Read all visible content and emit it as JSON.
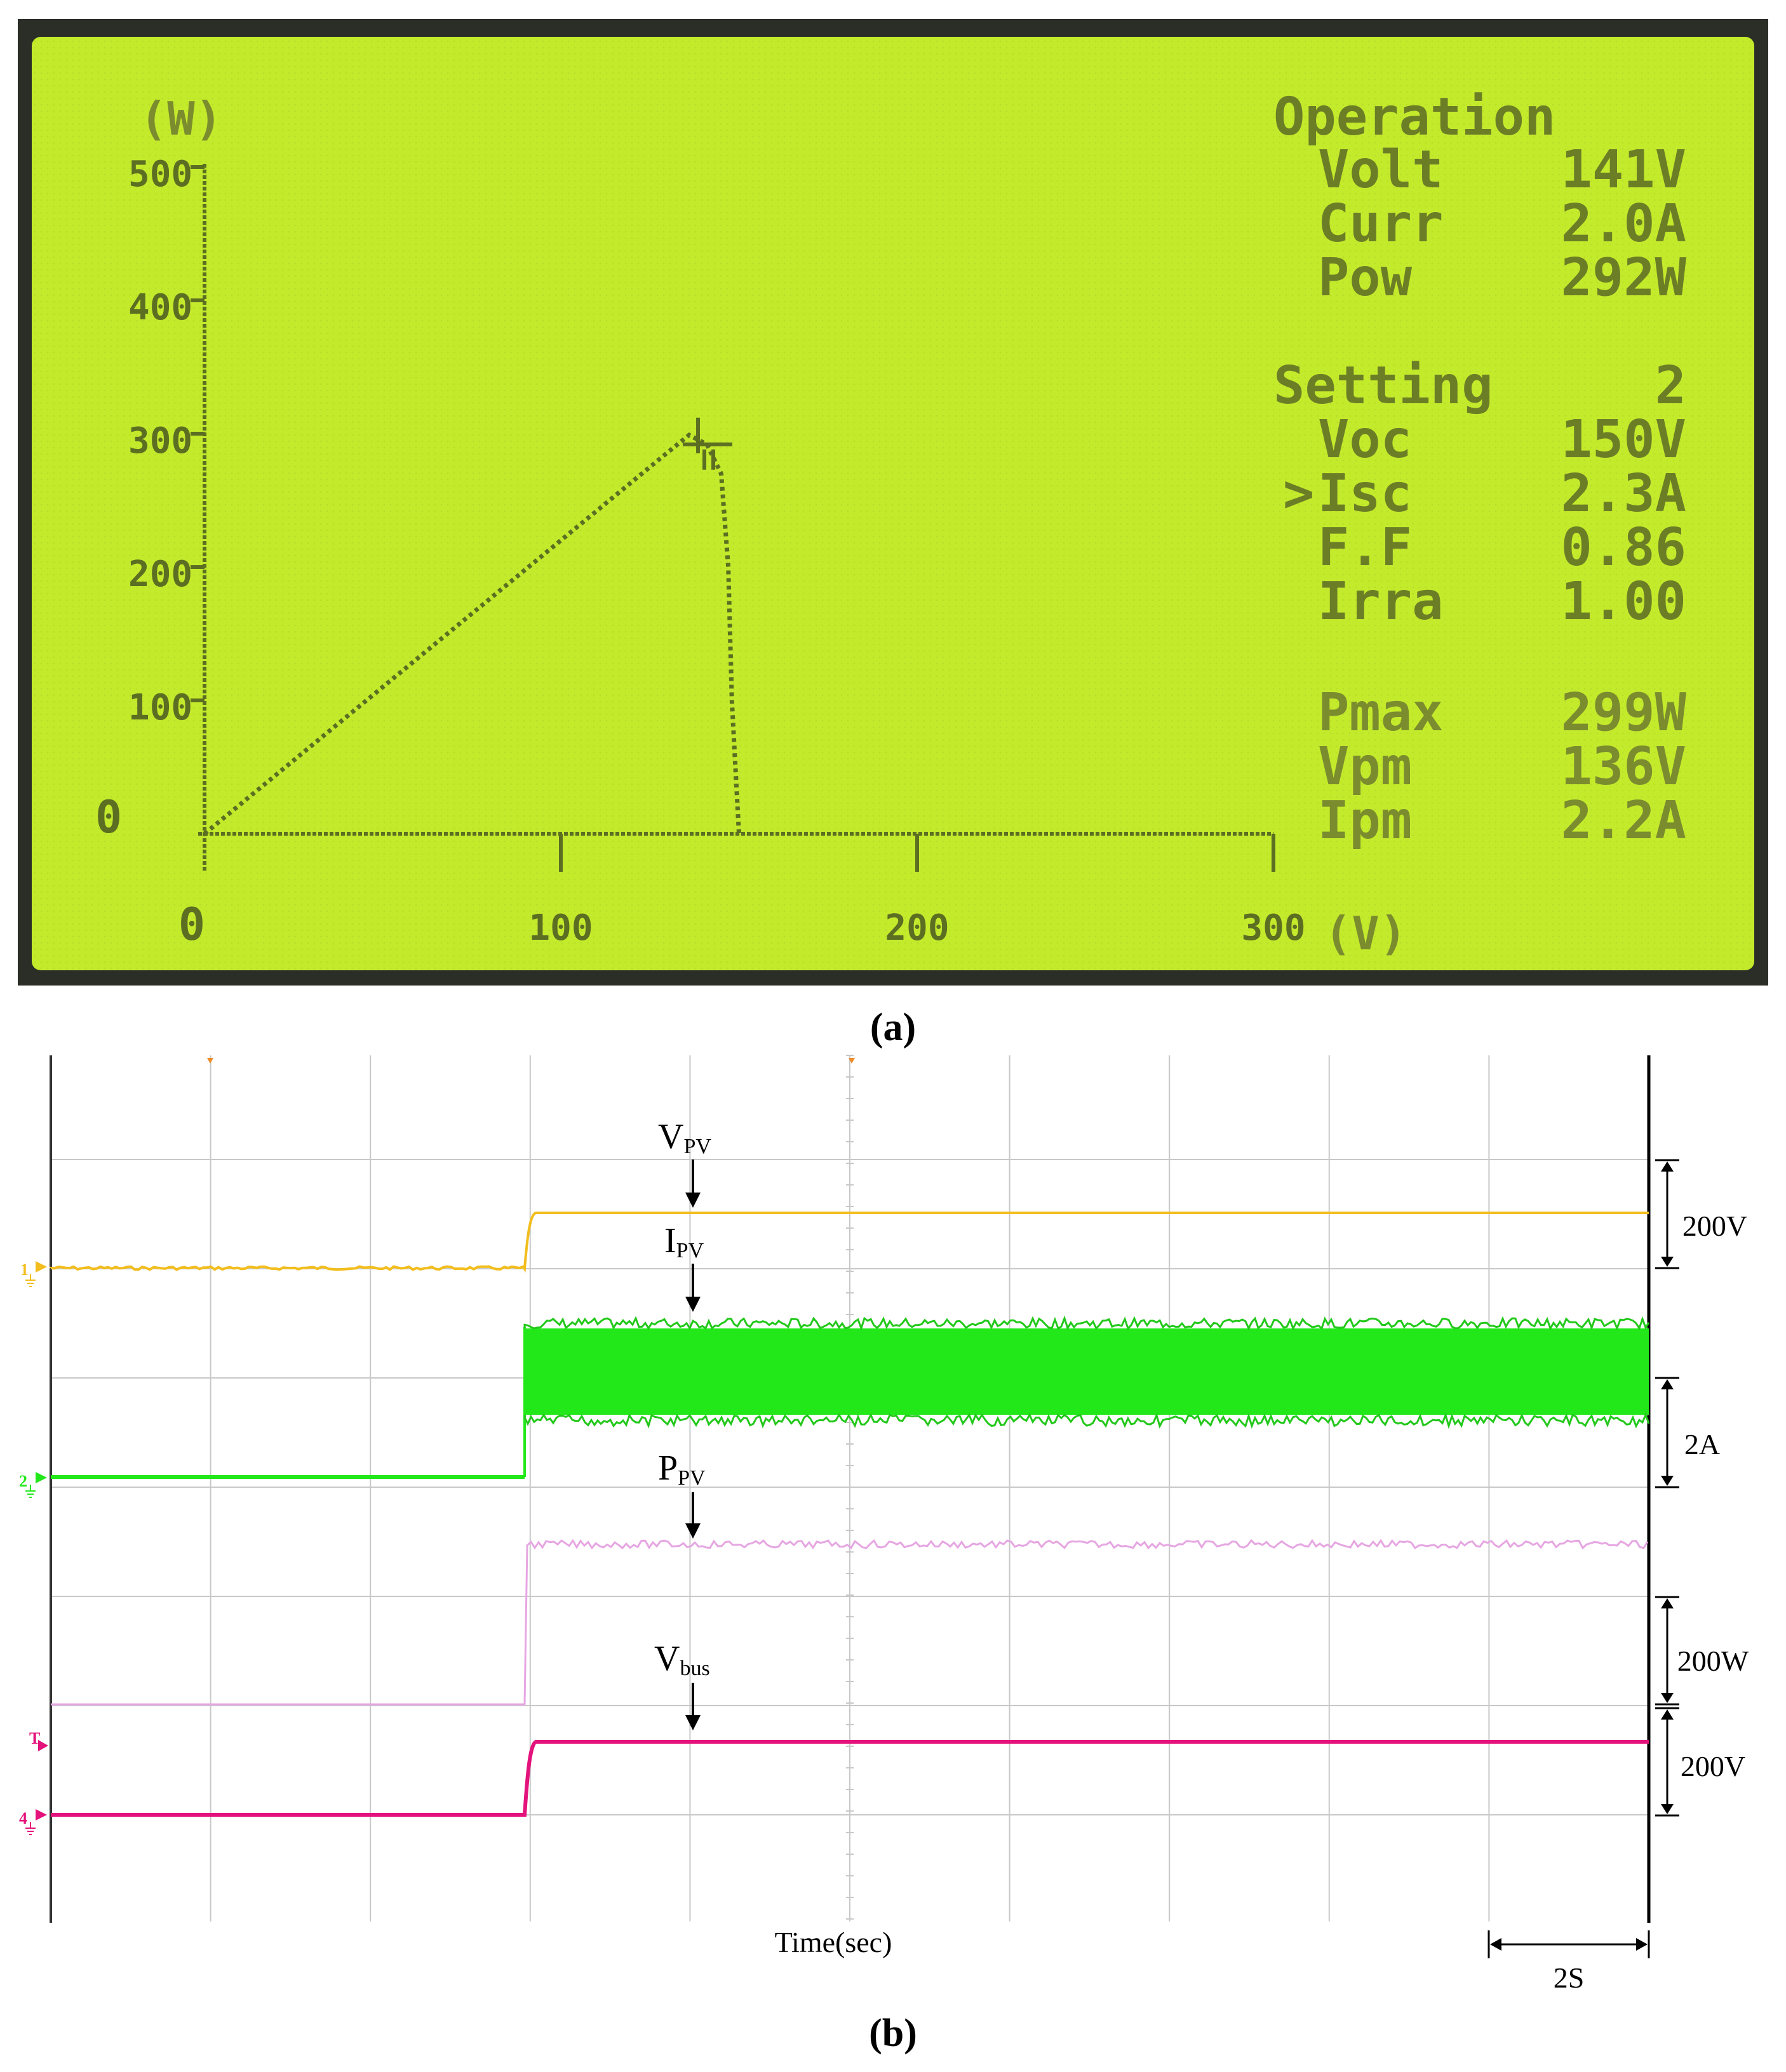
{
  "panel_a": {
    "caption": "(a)",
    "y_unit": "(W)",
    "x_unit": "(V)",
    "operation": {
      "heading": "Operation",
      "rows": [
        {
          "label": "Volt",
          "value": "141V"
        },
        {
          "label": "Curr",
          "value": "2.0A"
        },
        {
          "label": "Pow",
          "value": "292W"
        }
      ]
    },
    "setting": {
      "heading": "Setting",
      "number": "2",
      "rows": [
        {
          "label": "Voc",
          "value": "150V",
          "cursor": ""
        },
        {
          "label": "Isc",
          "value": "2.3A",
          "cursor": ">"
        },
        {
          "label": "F.F",
          "value": "0.86",
          "cursor": ""
        },
        {
          "label": "Irra",
          "value": "1.00",
          "cursor": ""
        }
      ]
    },
    "maxpoint": {
      "rows": [
        {
          "label": "Pmax",
          "value": "299W"
        },
        {
          "label": "Vpm",
          "value": "136V"
        },
        {
          "label": "Ipm",
          "value": "2.2A"
        }
      ]
    }
  },
  "panel_b": {
    "caption": "(b)",
    "xlabel": "Time(sec)",
    "time_scale": "2S",
    "channel_markers": [
      "1",
      "2",
      "T",
      "4"
    ],
    "scale_labels": [
      "200V",
      "2A",
      "200W",
      "200V"
    ]
  },
  "colors": {
    "lcd_bg": "#c4ea2c",
    "lcd_ink": "#5c6e22",
    "frame": "#2a2e26",
    "vpv": "#f2bd1d",
    "ipv": "#22e81a",
    "ppv": "#e6a6e2",
    "vbus": "#e4127c",
    "grid": "#c8c8c8"
  },
  "chart_data": [
    {
      "type": "line",
      "title": "",
      "xlabel": "(V)",
      "ylabel": "(W)",
      "xlim": [
        0,
        300
      ],
      "ylim": [
        0,
        500
      ],
      "x_ticks": [
        "0",
        "100",
        "200",
        "300"
      ],
      "y_ticks": [
        "0",
        "100",
        "200",
        "300",
        "400",
        "500"
      ],
      "grid": false,
      "series": [
        {
          "x": [
            0,
            10,
            20,
            30,
            40,
            50,
            60,
            70,
            80,
            90,
            100,
            110,
            120,
            130,
            136,
            141,
            145,
            147,
            148,
            150
          ],
          "y": [
            0,
            22,
            44,
            66,
            88,
            110,
            132,
            154,
            176,
            198,
            220,
            242,
            264,
            286,
            299,
            292,
            270,
            200,
            100,
            0
          ]
        }
      ],
      "markers": [
        {
          "x": 141,
          "y": 292
        }
      ]
    },
    {
      "type": "line",
      "title": "",
      "xlabel": "Time(sec)",
      "x_unit_per_div": "2S",
      "grid": true,
      "legend": "annotations",
      "series": [
        {
          "name": "V_PV",
          "label_main": "V",
          "label_sub": "PV",
          "scale": "200V",
          "t_step_s": 6,
          "before": 90,
          "after": 140,
          "noise": "low"
        },
        {
          "name": "I_PV",
          "label_main": "I",
          "label_sub": "PV",
          "scale": "2A",
          "t_step_s": 6,
          "before": 0,
          "after": 2.0,
          "ripple_pp": 0.9,
          "noise": "high"
        },
        {
          "name": "P_PV",
          "label_main": "P",
          "label_sub": "PV",
          "scale": "200W",
          "t_step_s": 6,
          "before": 0,
          "after": 290,
          "noise": "low"
        },
        {
          "name": "V_bus",
          "label_main": "V",
          "label_sub": "bus",
          "scale": "200V",
          "t_step_s": 6,
          "before": 0,
          "after": 140,
          "noise": "none"
        }
      ]
    }
  ]
}
